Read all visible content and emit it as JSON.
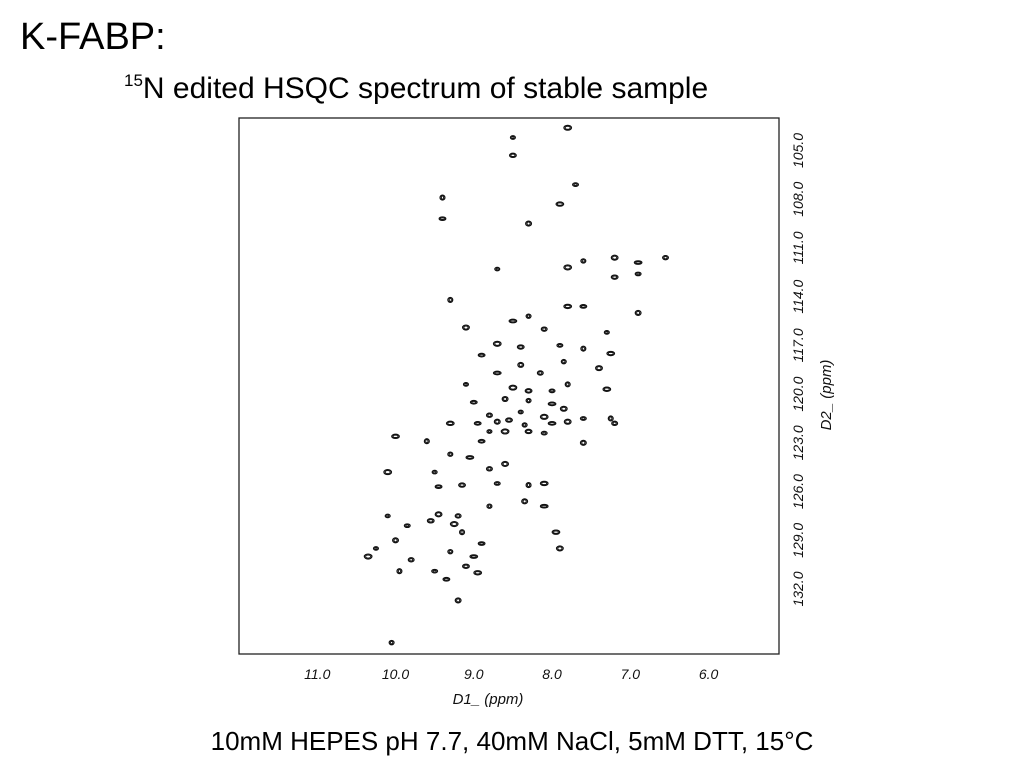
{
  "slide": {
    "title": "K-FABP:",
    "subtitle_sup": "15",
    "subtitle_rest": "N edited HSQC spectrum of stable sample",
    "caption": "10mM HEPES pH 7.7, 40mM NaCl, 5mM DTT, 15°C"
  },
  "chart_data": {
    "type": "scatter",
    "title": "15N edited HSQC spectrum of stable sample",
    "xlabel": "D1_ (ppm)",
    "ylabel": "D2_ (ppm)",
    "xlim": [
      12.0,
      5.1
    ],
    "ylim": [
      103.0,
      136.0
    ],
    "x_reversed": true,
    "y_reversed": true,
    "x_ticks": [
      "11.0",
      "10.0",
      "9.0",
      "8.0",
      "7.0",
      "6.0"
    ],
    "y_ticks": [
      "105.0",
      "108.0",
      "111.0",
      "114.0",
      "117.0",
      "120.0",
      "123.0",
      "126.0",
      "129.0",
      "132.0"
    ],
    "grid": false,
    "series": [
      {
        "values": [
          [
            8.5,
            104.2
          ],
          [
            7.8,
            103.6
          ],
          [
            8.5,
            105.3
          ],
          [
            7.7,
            107.1
          ],
          [
            9.4,
            107.9
          ],
          [
            7.9,
            108.3
          ],
          [
            9.4,
            109.2
          ],
          [
            8.3,
            109.5
          ],
          [
            7.6,
            111.8
          ],
          [
            6.9,
            111.9
          ],
          [
            7.2,
            111.6
          ],
          [
            6.55,
            111.6
          ],
          [
            8.7,
            112.3
          ],
          [
            7.8,
            112.2
          ],
          [
            7.2,
            112.8
          ],
          [
            6.9,
            112.6
          ],
          [
            9.3,
            114.2
          ],
          [
            7.8,
            114.6
          ],
          [
            7.6,
            114.6
          ],
          [
            6.9,
            115.0
          ],
          [
            8.3,
            115.2
          ],
          [
            8.5,
            115.5
          ],
          [
            9.1,
            115.9
          ],
          [
            8.1,
            116.0
          ],
          [
            7.3,
            116.2
          ],
          [
            8.7,
            116.9
          ],
          [
            8.4,
            117.1
          ],
          [
            7.9,
            117.0
          ],
          [
            7.6,
            117.2
          ],
          [
            7.25,
            117.5
          ],
          [
            8.9,
            117.6
          ],
          [
            8.4,
            118.2
          ],
          [
            7.85,
            118.0
          ],
          [
            8.7,
            118.7
          ],
          [
            7.4,
            118.4
          ],
          [
            8.15,
            118.7
          ],
          [
            9.1,
            119.4
          ],
          [
            8.5,
            119.6
          ],
          [
            8.3,
            119.8
          ],
          [
            8.0,
            119.8
          ],
          [
            7.8,
            119.4
          ],
          [
            7.3,
            119.7
          ],
          [
            9.0,
            120.5
          ],
          [
            8.6,
            120.3
          ],
          [
            8.3,
            120.4
          ],
          [
            8.0,
            120.6
          ],
          [
            7.85,
            120.9
          ],
          [
            8.8,
            121.3
          ],
          [
            8.4,
            121.1
          ],
          [
            8.1,
            121.4
          ],
          [
            8.55,
            121.6
          ],
          [
            7.6,
            121.5
          ],
          [
            7.25,
            121.5
          ],
          [
            9.3,
            121.8
          ],
          [
            8.95,
            121.8
          ],
          [
            8.7,
            121.7
          ],
          [
            8.35,
            121.9
          ],
          [
            8.0,
            121.8
          ],
          [
            7.8,
            121.7
          ],
          [
            7.2,
            121.8
          ],
          [
            8.8,
            122.3
          ],
          [
            8.6,
            122.3
          ],
          [
            8.3,
            122.3
          ],
          [
            8.1,
            122.4
          ],
          [
            9.6,
            122.9
          ],
          [
            10.0,
            122.6
          ],
          [
            8.9,
            122.9
          ],
          [
            7.6,
            123.0
          ],
          [
            9.3,
            123.7
          ],
          [
            9.05,
            123.9
          ],
          [
            8.6,
            124.3
          ],
          [
            8.8,
            124.6
          ],
          [
            9.5,
            124.8
          ],
          [
            10.1,
            124.8
          ],
          [
            9.15,
            125.6
          ],
          [
            8.7,
            125.5
          ],
          [
            8.3,
            125.6
          ],
          [
            8.1,
            125.5
          ],
          [
            9.45,
            125.7
          ],
          [
            8.35,
            126.6
          ],
          [
            8.8,
            126.9
          ],
          [
            8.1,
            126.9
          ],
          [
            9.45,
            127.4
          ],
          [
            9.2,
            127.5
          ],
          [
            10.1,
            127.5
          ],
          [
            9.25,
            128.0
          ],
          [
            9.55,
            127.8
          ],
          [
            9.85,
            128.1
          ],
          [
            9.15,
            128.5
          ],
          [
            7.95,
            128.5
          ],
          [
            8.9,
            129.2
          ],
          [
            10.0,
            129.0
          ],
          [
            9.3,
            129.7
          ],
          [
            9.0,
            130.0
          ],
          [
            7.9,
            129.5
          ],
          [
            9.8,
            130.2
          ],
          [
            10.25,
            129.5
          ],
          [
            10.35,
            130.0
          ],
          [
            9.1,
            130.6
          ],
          [
            9.5,
            130.9
          ],
          [
            9.95,
            130.9
          ],
          [
            8.95,
            131.0
          ],
          [
            9.35,
            131.4
          ],
          [
            9.2,
            132.7
          ],
          [
            10.05,
            135.3
          ]
        ]
      }
    ]
  }
}
